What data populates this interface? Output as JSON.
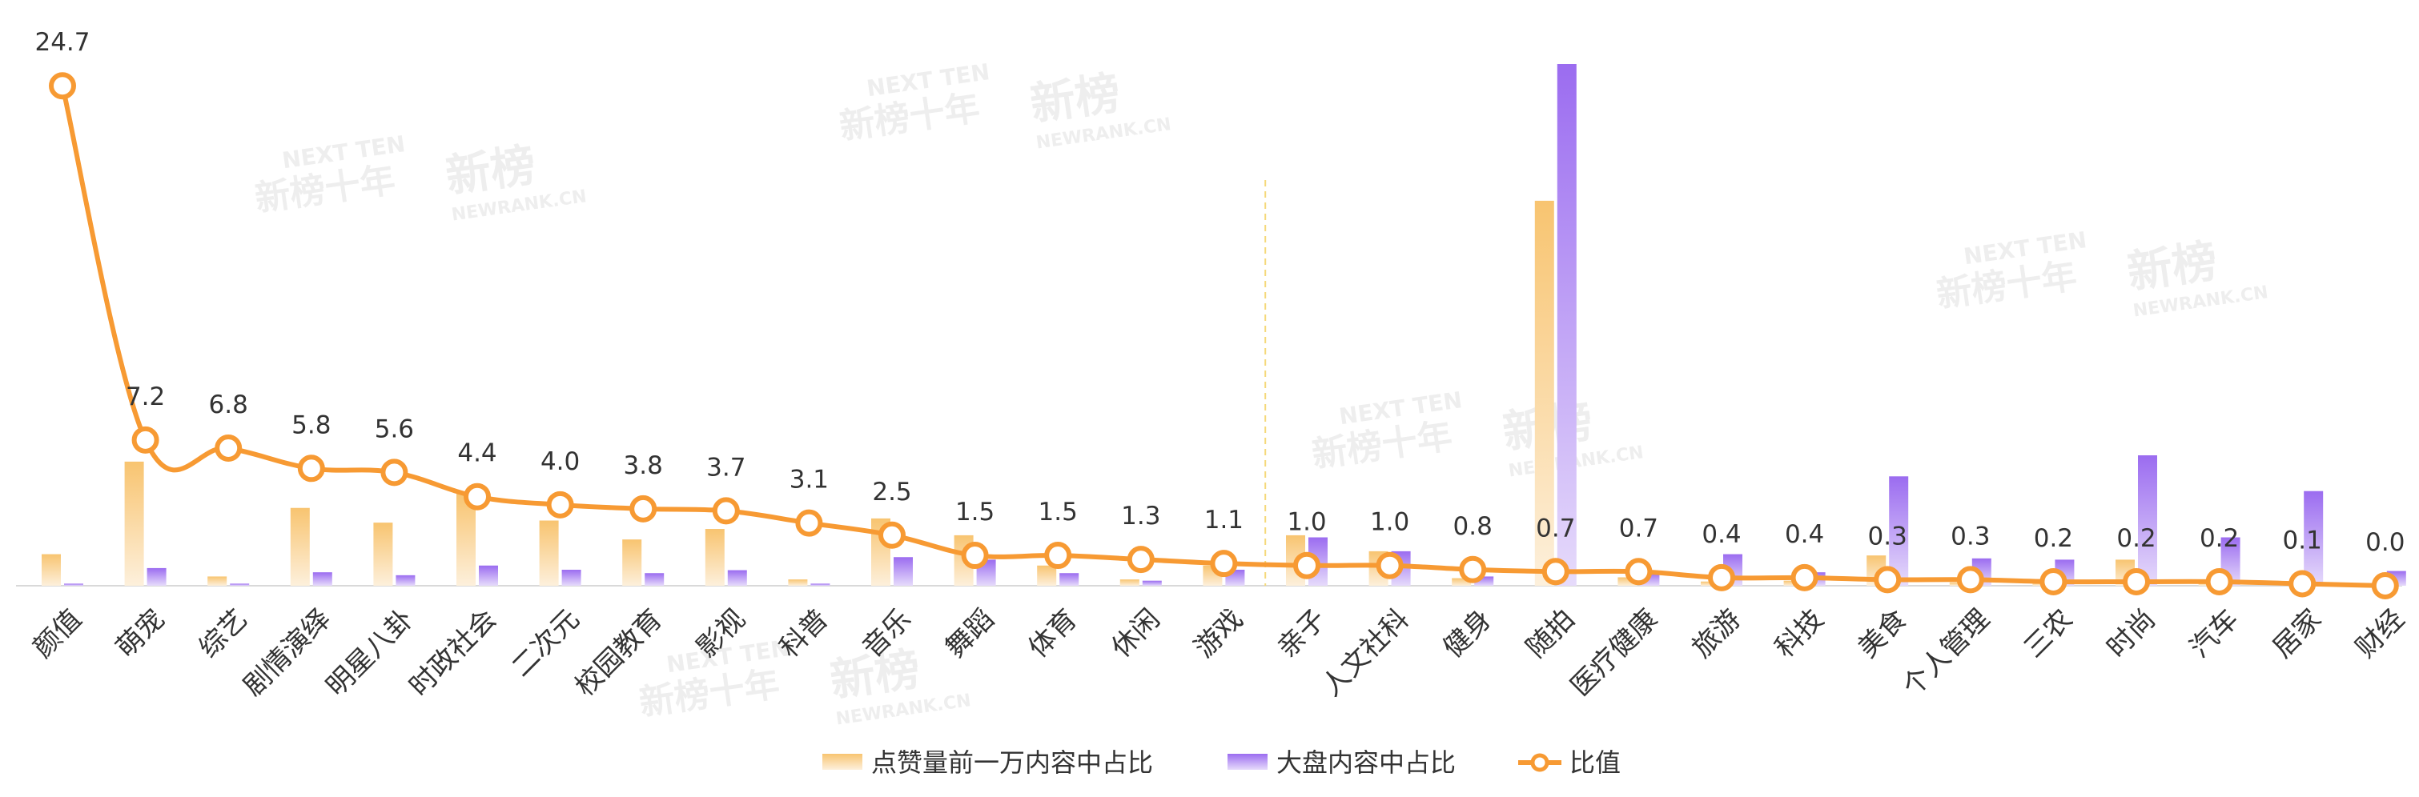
{
  "chart_data": {
    "type": "bar+line",
    "categories": [
      "颜值",
      "萌宠",
      "综艺",
      "剧情演绎",
      "明星八卦",
      "时政社会",
      "二次元",
      "校园教育",
      "影视",
      "科普",
      "音乐",
      "舞蹈",
      "体育",
      "休闲",
      "游戏",
      "亲子",
      "人文社科",
      "健身",
      "随拍",
      "医疗健康",
      "旅游",
      "科技",
      "美食",
      "个人管理",
      "三农",
      "时尚",
      "汽车",
      "居家",
      "财经"
    ],
    "series": [
      {
        "name": "点赞量前一万内容中占比",
        "kind": "bar",
        "color": "#f8c470",
        "values": [
          0.75,
          2.95,
          0.22,
          1.85,
          1.5,
          2.2,
          1.55,
          1.1,
          1.35,
          0.15,
          1.6,
          1.2,
          0.48,
          0.15,
          0.48,
          1.2,
          0.82,
          0.18,
          9.15,
          0.2,
          0.1,
          0.12,
          0.72,
          0.08,
          0.08,
          0.62,
          0.08,
          0.1,
          0.05
        ]
      },
      {
        "name": "大盘内容中占比",
        "kind": "bar",
        "color": "#9b6cf0",
        "values": [
          0.05,
          0.42,
          0.05,
          0.32,
          0.25,
          0.48,
          0.38,
          0.3,
          0.37,
          0.05,
          0.68,
          0.62,
          0.3,
          0.12,
          0.38,
          1.15,
          0.82,
          0.22,
          12.4,
          0.3,
          0.75,
          0.32,
          2.6,
          0.65,
          0.62,
          3.1,
          1.15,
          2.25,
          0.35
        ]
      },
      {
        "name": "比值",
        "kind": "line",
        "color": "#f79a33",
        "values": [
          24.7,
          7.2,
          6.8,
          5.8,
          5.6,
          4.4,
          4.0,
          3.8,
          3.7,
          3.1,
          2.5,
          1.5,
          1.5,
          1.3,
          1.1,
          1.0,
          1.0,
          0.8,
          0.7,
          0.7,
          0.4,
          0.4,
          0.3,
          0.3,
          0.2,
          0.2,
          0.2,
          0.1,
          0.0
        ],
        "labels": [
          "24.7",
          "7.2",
          "6.8",
          "5.8",
          "5.6",
          "4.4",
          "4.0",
          "3.8",
          "3.7",
          "3.1",
          "2.5",
          "1.5",
          "1.5",
          "1.3",
          "1.1",
          "1.0",
          "1.0",
          "0.8",
          "0.7",
          "0.7",
          "0.4",
          "0.4",
          "0.3",
          "0.3",
          "0.2",
          "0.2",
          "0.2",
          "0.1",
          "0.0"
        ]
      }
    ],
    "ratio_ylim": [
      0,
      27.2
    ],
    "share_ylim": [
      0,
      12.4
    ],
    "grid": false,
    "legend_position": "bottom-center",
    "reference_line": {
      "at_category": "亲子",
      "style": "dashed",
      "color": "#f5d97a"
    },
    "watermark": {
      "brand": "新榜",
      "sub": "NEWRANK.CN",
      "decade": "新榜十年",
      "en": "NEXT TEN"
    }
  }
}
